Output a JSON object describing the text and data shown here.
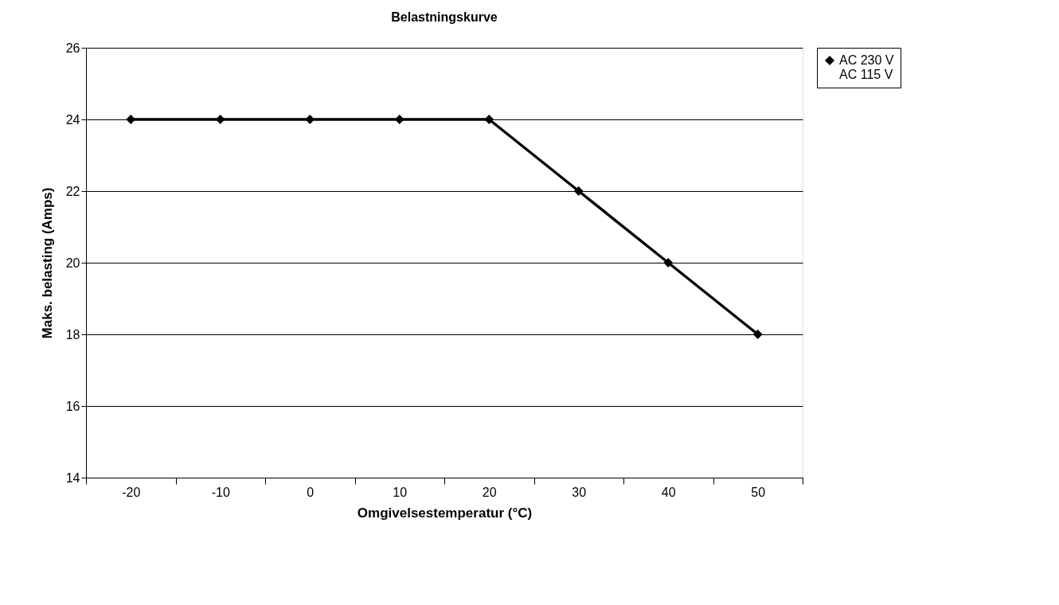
{
  "chart_data": {
    "type": "line",
    "title": "Belastningskurve",
    "xlabel": "Omgivelsestemperatur (°C)",
    "ylabel": "Maks. belasting  (Amps)",
    "categories": [
      "-20",
      "-10",
      "0",
      "10",
      "20",
      "30",
      "40",
      "50"
    ],
    "series": [
      {
        "name": "AC 230 V",
        "color": "#000000",
        "values": [
          24,
          24,
          24,
          24,
          24,
          22,
          20,
          18
        ]
      },
      {
        "name": "AC 115 V",
        "values": [
          null,
          null,
          null,
          null,
          null,
          null,
          null,
          null
        ]
      }
    ],
    "ylim": [
      14,
      26
    ],
    "yticks": [
      14,
      16,
      18,
      20,
      22,
      24,
      26
    ],
    "grid": "y",
    "legend": "right",
    "marker": "diamond",
    "line_style": "solid"
  }
}
